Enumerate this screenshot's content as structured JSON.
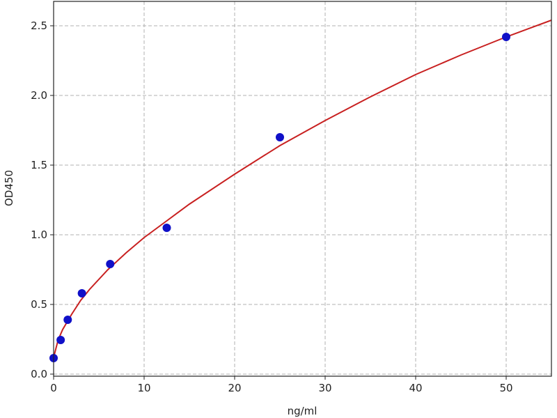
{
  "chart_data": {
    "type": "scatter",
    "title": "",
    "xlabel": "ng/ml",
    "ylabel": "OD450",
    "xlim": [
      0,
      55
    ],
    "ylim": [
      0,
      2.67
    ],
    "xticks": [
      "0",
      "10",
      "20",
      "30",
      "40",
      "50"
    ],
    "yticks": [
      "0.0",
      "0.5",
      "1.0",
      "1.5",
      "2.0",
      "2.5"
    ],
    "grid": true,
    "points": {
      "x": [
        0,
        0.78,
        1.56,
        3.125,
        6.25,
        12.5,
        25,
        50
      ],
      "y": [
        0.115,
        0.245,
        0.39,
        0.58,
        0.79,
        1.05,
        1.7,
        2.42
      ],
      "color": "#1010c8"
    },
    "fit_curve": {
      "x": [
        0,
        0.5,
        1,
        2,
        3,
        4,
        6,
        8,
        10,
        12.5,
        15,
        20,
        25,
        30,
        35,
        40,
        45,
        50,
        55
      ],
      "y": [
        0.12,
        0.245,
        0.32,
        0.43,
        0.53,
        0.61,
        0.75,
        0.87,
        0.98,
        1.1,
        1.22,
        1.435,
        1.64,
        1.82,
        1.99,
        2.15,
        2.29,
        2.42,
        2.54
      ],
      "color": "#c82020"
    }
  }
}
